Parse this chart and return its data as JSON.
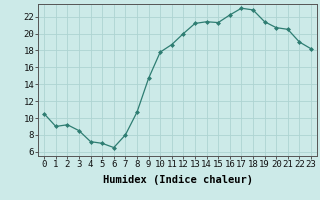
{
  "x": [
    0,
    1,
    2,
    3,
    4,
    5,
    6,
    7,
    8,
    9,
    10,
    11,
    12,
    13,
    14,
    15,
    16,
    17,
    18,
    19,
    20,
    21,
    22,
    23
  ],
  "y": [
    10.5,
    9.0,
    9.2,
    8.5,
    7.2,
    7.0,
    6.5,
    8.0,
    10.7,
    14.7,
    17.8,
    18.7,
    20.0,
    21.2,
    21.4,
    21.3,
    22.2,
    23.0,
    22.8,
    21.4,
    20.7,
    20.5,
    19.0,
    18.2
  ],
  "line_color": "#2e7d72",
  "marker": "D",
  "marker_size": 2,
  "bg_color": "#cceae8",
  "grid_color": "#aed4d2",
  "xlabel": "Humidex (Indice chaleur)",
  "xlim": [
    -0.5,
    23.5
  ],
  "ylim": [
    5.5,
    23.5
  ],
  "yticks": [
    6,
    8,
    10,
    12,
    14,
    16,
    18,
    20,
    22
  ],
  "xticks": [
    0,
    1,
    2,
    3,
    4,
    5,
    6,
    7,
    8,
    9,
    10,
    11,
    12,
    13,
    14,
    15,
    16,
    17,
    18,
    19,
    20,
    21,
    22,
    23
  ],
  "xlabel_fontsize": 7.5,
  "tick_fontsize": 6.5,
  "linewidth": 0.9
}
